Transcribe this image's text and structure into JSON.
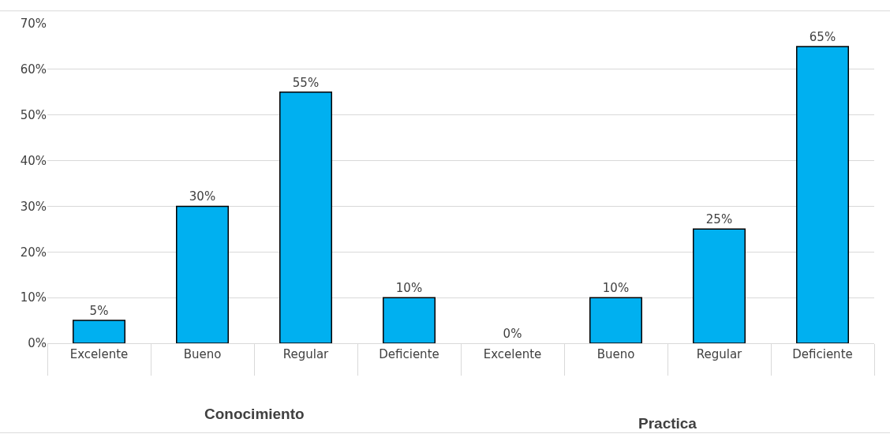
{
  "chart_data": {
    "type": "bar",
    "categories": [
      "Excelente",
      "Bueno",
      "Regular",
      "Deficiente",
      "Excelente",
      "Bueno",
      "Regular",
      "Deficiente"
    ],
    "values": [
      5,
      30,
      55,
      10,
      0,
      10,
      25,
      65
    ],
    "value_labels": [
      "5%",
      "30%",
      "55%",
      "10%",
      "0%",
      "10%",
      "25%",
      "65%"
    ],
    "color": "#00b0f0",
    "ylim": [
      0,
      70
    ],
    "yticks": [
      {
        "value": 0,
        "label": "0%"
      },
      {
        "value": 10,
        "label": "10%"
      },
      {
        "value": 20,
        "label": "20%"
      },
      {
        "value": 30,
        "label": "30%"
      },
      {
        "value": 40,
        "label": "40%"
      },
      {
        "value": 50,
        "label": "50%"
      },
      {
        "value": 60,
        "label": "60%"
      },
      {
        "value": 70,
        "label": "70%"
      }
    ],
    "grid": "y",
    "legend": false,
    "annotations": [
      "Conocimiento",
      "Practica"
    ]
  }
}
